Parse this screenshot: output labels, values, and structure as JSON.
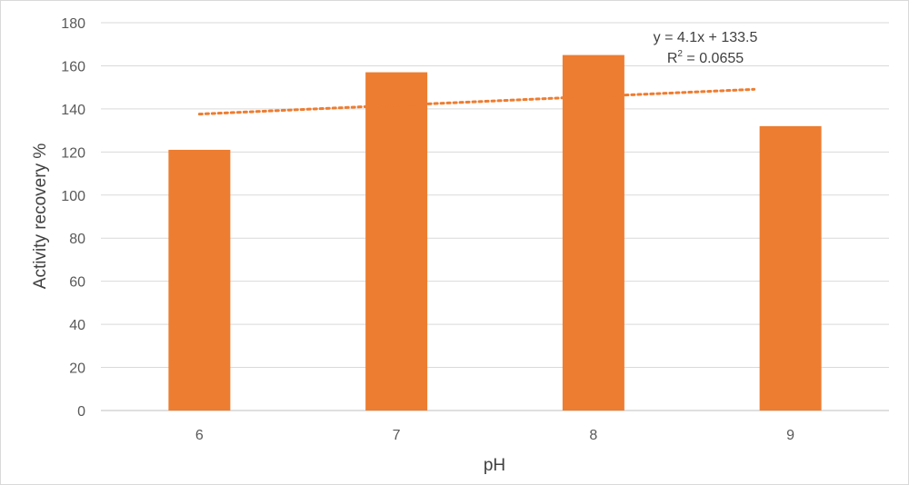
{
  "chart_data": {
    "type": "bar",
    "categories": [
      "6",
      "7",
      "8",
      "9"
    ],
    "series": [
      {
        "values": [
          121,
          157,
          165,
          132
        ],
        "color": "#ED7D31"
      }
    ],
    "trendline": {
      "type": "linear",
      "style": "dotted",
      "color": "#ED7D31",
      "slope": 4.1,
      "intercept": 133.5,
      "equation_line1": "y = 4.1x + 133.5",
      "equation_line2_prefix": "R",
      "equation_line2_superscript": "2",
      "equation_line2_suffix": " = 0.0655"
    },
    "xlabel": "pH",
    "ylabel": "Activity recovery %",
    "ylim": [
      0,
      180
    ],
    "yticks": [
      0,
      20,
      40,
      60,
      80,
      100,
      120,
      140,
      160,
      180
    ],
    "grid": true,
    "legend": "none"
  }
}
